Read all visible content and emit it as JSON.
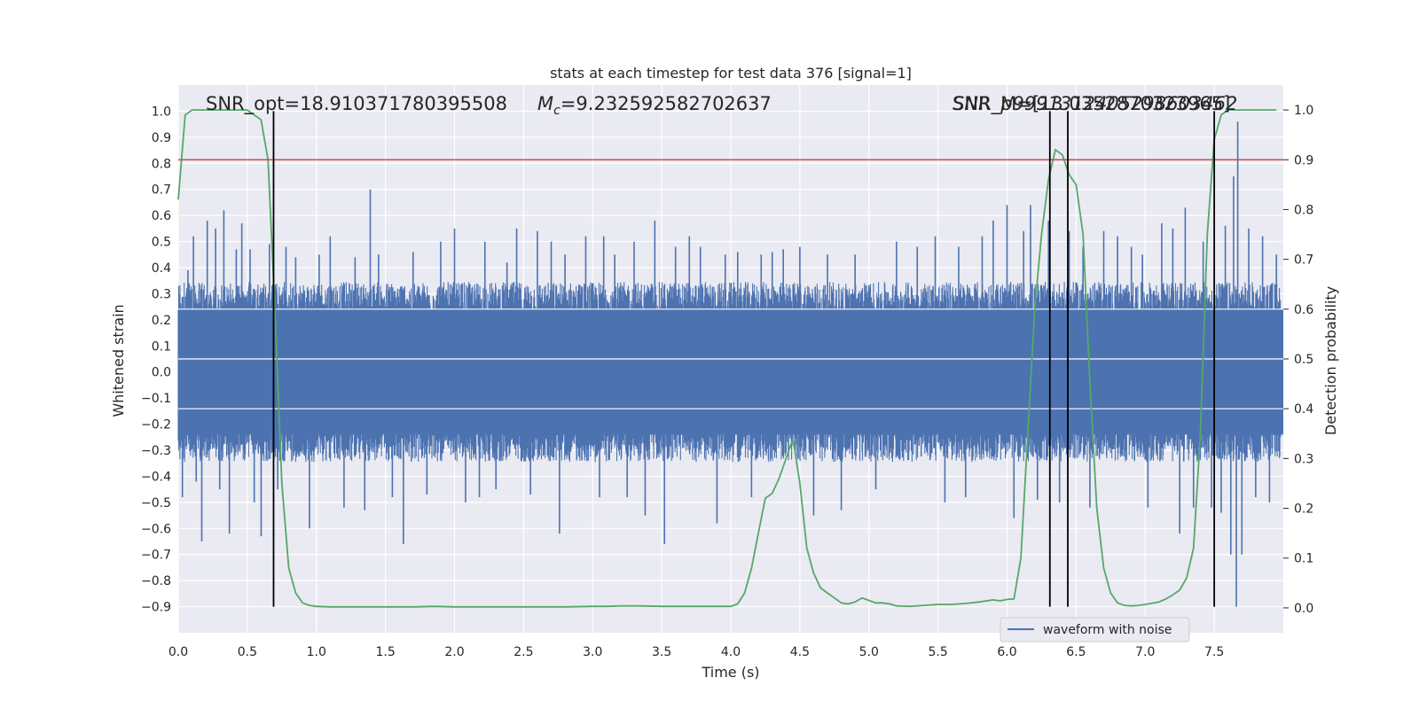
{
  "chart_data": {
    "type": "line",
    "title": "stats at each timestep for test data 376 [signal=1]",
    "xlabel": "Time (s)",
    "ylabel": "Whitened strain",
    "y2label": "Detection probability",
    "xlim": [
      0.0,
      8.0
    ],
    "ylim": [
      -1.0,
      1.1
    ],
    "y2lim": [
      -0.05,
      1.05
    ],
    "x_ticks": [
      "0.0",
      "0.5",
      "1.0",
      "1.5",
      "2.0",
      "2.5",
      "3.0",
      "3.5",
      "4.0",
      "4.5",
      "5.0",
      "5.5",
      "6.0",
      "6.5",
      "7.0",
      "7.5"
    ],
    "y_ticks": [
      "1.0",
      "0.9",
      "0.8",
      "0.7",
      "0.6",
      "0.5",
      "0.4",
      "0.3",
      "0.2",
      "0.1",
      "0.0",
      "−0.1",
      "−0.2",
      "−0.3",
      "−0.4",
      "−0.5",
      "−0.6",
      "−0.7",
      "−0.8",
      "−0.9"
    ],
    "y2_ticks": [
      "1.0",
      "0.9",
      "0.8",
      "0.7",
      "0.6",
      "0.5",
      "0.4",
      "0.3",
      "0.2",
      "0.1",
      "0.0"
    ],
    "grid": true,
    "legend_position": "lower-right",
    "annotations": {
      "snr_opt": "SNR_opt=18.910371780395508",
      "mc_prefix": "M",
      "mc_sub": "c",
      "mc_value": "=9.232592582702637",
      "overlap_text_1": "SNR_p9991312405298603462",
      "overlap_text_2": "SNR_M=[13.0352870323965]"
    },
    "series": [
      {
        "name": "waveform with noise",
        "color": "#4c72b0",
        "axis": "left",
        "envelope": {
          "typical_upper": 0.3,
          "typical_lower": -0.3,
          "spikes": [
            [
              0.03,
              -0.48
            ],
            [
              0.07,
              0.39
            ],
            [
              0.11,
              0.52
            ],
            [
              0.13,
              -0.42
            ],
            [
              0.17,
              -0.65
            ],
            [
              0.21,
              0.58
            ],
            [
              0.27,
              0.55
            ],
            [
              0.3,
              -0.45
            ],
            [
              0.33,
              0.62
            ],
            [
              0.37,
              -0.62
            ],
            [
              0.42,
              0.47
            ],
            [
              0.46,
              0.57
            ],
            [
              0.52,
              0.47
            ],
            [
              0.55,
              -0.5
            ],
            [
              0.6,
              -0.63
            ],
            [
              0.66,
              0.49
            ],
            [
              0.72,
              -0.45
            ],
            [
              0.78,
              0.48
            ],
            [
              0.85,
              0.44
            ],
            [
              0.95,
              -0.6
            ],
            [
              1.02,
              0.45
            ],
            [
              1.1,
              0.52
            ],
            [
              1.2,
              -0.52
            ],
            [
              1.28,
              0.44
            ],
            [
              1.35,
              -0.53
            ],
            [
              1.39,
              0.7
            ],
            [
              1.45,
              0.45
            ],
            [
              1.55,
              -0.48
            ],
            [
              1.63,
              -0.66
            ],
            [
              1.7,
              0.46
            ],
            [
              1.8,
              -0.47
            ],
            [
              1.9,
              0.5
            ],
            [
              2.0,
              0.55
            ],
            [
              2.08,
              -0.5
            ],
            [
              2.18,
              -0.48
            ],
            [
              2.22,
              0.5
            ],
            [
              2.3,
              -0.45
            ],
            [
              2.38,
              0.42
            ],
            [
              2.45,
              0.55
            ],
            [
              2.55,
              -0.47
            ],
            [
              2.6,
              0.54
            ],
            [
              2.7,
              0.5
            ],
            [
              2.76,
              -0.62
            ],
            [
              2.8,
              0.45
            ],
            [
              2.95,
              0.52
            ],
            [
              3.05,
              -0.48
            ],
            [
              3.08,
              0.52
            ],
            [
              3.16,
              0.45
            ],
            [
              3.25,
              -0.48
            ],
            [
              3.3,
              0.5
            ],
            [
              3.38,
              -0.55
            ],
            [
              3.45,
              0.58
            ],
            [
              3.52,
              -0.66
            ],
            [
              3.6,
              0.48
            ],
            [
              3.7,
              0.52
            ],
            [
              3.78,
              0.48
            ],
            [
              3.9,
              -0.58
            ],
            [
              3.96,
              0.45
            ],
            [
              4.05,
              0.46
            ],
            [
              4.15,
              -0.48
            ],
            [
              4.22,
              0.45
            ],
            [
              4.3,
              0.46
            ],
            [
              4.38,
              0.47
            ],
            [
              4.5,
              0.48
            ],
            [
              4.6,
              -0.55
            ],
            [
              4.7,
              0.45
            ],
            [
              4.8,
              -0.53
            ],
            [
              4.9,
              0.45
            ],
            [
              5.05,
              -0.45
            ],
            [
              5.2,
              0.5
            ],
            [
              5.35,
              0.48
            ],
            [
              5.48,
              0.52
            ],
            [
              5.55,
              -0.5
            ],
            [
              5.65,
              0.48
            ],
            [
              5.7,
              -0.48
            ],
            [
              5.82,
              0.52
            ],
            [
              5.9,
              0.58
            ],
            [
              6.0,
              0.64
            ],
            [
              6.05,
              -0.56
            ],
            [
              6.12,
              0.54
            ],
            [
              6.17,
              0.64
            ],
            [
              6.22,
              -0.49
            ],
            [
              6.3,
              0.58
            ],
            [
              6.38,
              -0.5
            ],
            [
              6.45,
              0.54
            ],
            [
              6.55,
              0.48
            ],
            [
              6.6,
              -0.52
            ],
            [
              6.7,
              0.54
            ],
            [
              6.8,
              0.52
            ],
            [
              6.9,
              0.48
            ],
            [
              6.98,
              0.45
            ],
            [
              7.02,
              -0.52
            ],
            [
              7.12,
              0.57
            ],
            [
              7.2,
              0.55
            ],
            [
              7.25,
              -0.62
            ],
            [
              7.29,
              0.63
            ],
            [
              7.35,
              -0.52
            ],
            [
              7.42,
              0.5
            ],
            [
              7.48,
              -0.52
            ],
            [
              7.55,
              -0.54
            ],
            [
              7.58,
              0.56
            ],
            [
              7.62,
              -0.7
            ],
            [
              7.64,
              0.75
            ],
            [
              7.66,
              -0.9
            ],
            [
              7.67,
              0.96
            ],
            [
              7.7,
              -0.7
            ],
            [
              7.75,
              0.55
            ],
            [
              7.8,
              -0.48
            ],
            [
              7.85,
              0.52
            ],
            [
              7.9,
              -0.5
            ],
            [
              7.95,
              0.45
            ]
          ]
        }
      },
      {
        "name": "",
        "color": "#55a868",
        "axis": "right",
        "x": [
          0.0,
          0.05,
          0.1,
          0.2,
          0.3,
          0.4,
          0.5,
          0.55,
          0.6,
          0.65,
          0.7,
          0.75,
          0.8,
          0.85,
          0.9,
          0.95,
          1.0,
          1.1,
          1.2,
          1.3,
          1.5,
          1.7,
          1.85,
          2.0,
          2.2,
          2.4,
          2.6,
          2.8,
          3.0,
          3.1,
          3.2,
          3.35,
          3.5,
          3.7,
          3.85,
          4.0,
          4.05,
          4.1,
          4.15,
          4.2,
          4.25,
          4.3,
          4.35,
          4.4,
          4.45,
          4.5,
          4.55,
          4.6,
          4.65,
          4.7,
          4.75,
          4.8,
          4.85,
          4.9,
          4.95,
          5.0,
          5.05,
          5.1,
          5.15,
          5.2,
          5.3,
          5.4,
          5.5,
          5.6,
          5.7,
          5.8,
          5.85,
          5.9,
          5.95,
          6.0,
          6.05,
          6.1,
          6.15,
          6.2,
          6.25,
          6.3,
          6.35,
          6.4,
          6.45,
          6.5,
          6.55,
          6.6,
          6.65,
          6.7,
          6.75,
          6.8,
          6.85,
          6.9,
          6.95,
          7.0,
          7.1,
          7.15,
          7.2,
          7.25,
          7.3,
          7.35,
          7.4,
          7.45,
          7.5,
          7.55,
          7.6,
          7.65,
          7.7,
          7.8,
          7.95
        ],
        "values": [
          0.82,
          0.99,
          1.0,
          1.0,
          1.0,
          1.0,
          1.0,
          0.99,
          0.98,
          0.9,
          0.6,
          0.25,
          0.08,
          0.03,
          0.01,
          0.005,
          0.003,
          0.002,
          0.002,
          0.002,
          0.002,
          0.002,
          0.003,
          0.002,
          0.002,
          0.002,
          0.002,
          0.002,
          0.003,
          0.003,
          0.004,
          0.004,
          0.003,
          0.003,
          0.003,
          0.003,
          0.008,
          0.03,
          0.08,
          0.15,
          0.22,
          0.23,
          0.26,
          0.3,
          0.34,
          0.25,
          0.12,
          0.07,
          0.04,
          0.03,
          0.02,
          0.01,
          0.008,
          0.012,
          0.02,
          0.015,
          0.01,
          0.01,
          0.008,
          0.004,
          0.003,
          0.005,
          0.007,
          0.007,
          0.009,
          0.012,
          0.014,
          0.016,
          0.014,
          0.017,
          0.018,
          0.1,
          0.35,
          0.6,
          0.75,
          0.86,
          0.92,
          0.91,
          0.87,
          0.85,
          0.75,
          0.45,
          0.2,
          0.08,
          0.03,
          0.01,
          0.005,
          0.004,
          0.005,
          0.007,
          0.012,
          0.018,
          0.026,
          0.036,
          0.06,
          0.12,
          0.35,
          0.75,
          0.94,
          0.99,
          1.0,
          1.0,
          1.0,
          1.0,
          1.0
        ]
      },
      {
        "name": "",
        "color": "#c44e52",
        "axis": "right",
        "type": "hline",
        "value": 0.9
      }
    ],
    "white_hlines_right": [
      0.6,
      0.5,
      0.4
    ],
    "vlines_x": [
      0.69,
      6.31,
      6.44,
      7.5
    ],
    "vlines_y_range": [
      -0.9,
      1.0
    ]
  }
}
